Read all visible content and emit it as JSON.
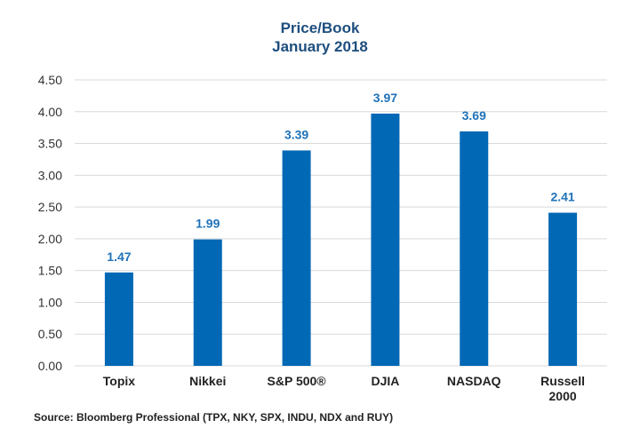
{
  "chart_data": {
    "type": "bar",
    "title": "Price/Book",
    "subtitle": "January 2018",
    "categories": [
      "Topix",
      "Nikkei",
      "S&P 500®",
      "DJIA",
      "NASDAQ",
      "Russell 2000"
    ],
    "category_lines": [
      [
        "Topix"
      ],
      [
        "Nikkei"
      ],
      [
        "S&P 500®"
      ],
      [
        "DJIA"
      ],
      [
        "NASDAQ"
      ],
      [
        "Russell",
        "2000"
      ]
    ],
    "values": [
      1.47,
      1.99,
      3.39,
      3.97,
      3.69,
      2.41
    ],
    "data_labels": [
      "1.47",
      "1.99",
      "3.39",
      "3.97",
      "3.69",
      "2.41"
    ],
    "xlabel": "",
    "ylabel": "",
    "ylim": [
      0,
      4.5
    ],
    "yticks": [
      0,
      0.5,
      1.0,
      1.5,
      2.0,
      2.5,
      3.0,
      3.5,
      4.0,
      4.5
    ],
    "ytick_labels": [
      "0.00",
      "0.50",
      "1.00",
      "1.50",
      "2.00",
      "2.50",
      "3.00",
      "3.50",
      "4.00",
      "4.50"
    ],
    "grid": true,
    "legend": "none",
    "bar_color": "#0068b5",
    "label_color": "#1f72b8",
    "title_color": "#1d4e7e",
    "source": "Source: Bloomberg Professional (TPX, NKY, SPX, INDU, NDX and RUY)"
  }
}
